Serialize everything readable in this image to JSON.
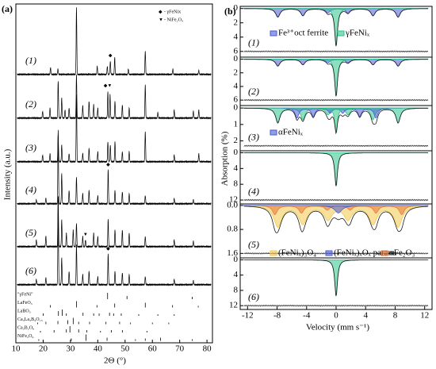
{
  "panel_a": {
    "label": "(a)",
    "x_label": "2Θ (°)",
    "y_label": "Intensity (a.u.)",
    "xlim": [
      10,
      82
    ],
    "xticks": [
      10,
      20,
      30,
      40,
      50,
      60,
      70,
      80
    ],
    "legend": [
      {
        "symbol": "◆",
        "text": "- γFeNix"
      },
      {
        "symbol": "▼",
        "text": "- NiFe₂O₄"
      }
    ],
    "patterns": [
      {
        "label": "(1)",
        "peaks": [
          [
            22.7,
            10
          ],
          [
            25.4,
            8
          ],
          [
            32.2,
            100
          ],
          [
            39.8,
            12
          ],
          [
            43.5,
            12
          ],
          [
            44.6,
            20
          ],
          [
            46.2,
            25
          ],
          [
            51.2,
            8
          ],
          [
            57.4,
            35
          ],
          [
            67.5,
            8
          ],
          [
            77,
            6
          ]
        ],
        "markers": [
          {
            "x": 44.6,
            "symbol": "◆"
          }
        ]
      },
      {
        "label": "(2)",
        "peaks": [
          [
            19.8,
            10
          ],
          [
            22.5,
            15
          ],
          [
            25.5,
            55
          ],
          [
            26.8,
            30
          ],
          [
            28,
            12
          ],
          [
            29.5,
            15
          ],
          [
            32.2,
            65
          ],
          [
            34.5,
            18
          ],
          [
            36.8,
            25
          ],
          [
            38.5,
            20
          ],
          [
            40,
            15
          ],
          [
            43.7,
            40
          ],
          [
            44.5,
            35
          ],
          [
            46.3,
            25
          ],
          [
            49,
            20
          ],
          [
            51.5,
            15
          ],
          [
            57.4,
            50
          ],
          [
            62,
            8
          ],
          [
            68,
            12
          ],
          [
            75,
            10
          ],
          [
            77,
            12
          ]
        ],
        "markers": [
          {
            "x": 43.7,
            "symbol": "◆▼"
          }
        ]
      },
      {
        "label": "(3)",
        "peaks": [
          [
            19.8,
            10
          ],
          [
            22.5,
            12
          ],
          [
            25.5,
            40
          ],
          [
            26.8,
            25
          ],
          [
            29.5,
            12
          ],
          [
            32.2,
            100
          ],
          [
            34.5,
            12
          ],
          [
            36.8,
            20
          ],
          [
            40,
            15
          ],
          [
            43.7,
            30
          ],
          [
            44.6,
            25
          ],
          [
            46.3,
            30
          ],
          [
            49,
            15
          ],
          [
            51.5,
            15
          ],
          [
            57.4,
            45
          ],
          [
            68,
            10
          ],
          [
            77,
            12
          ]
        ],
        "markers": []
      },
      {
        "label": "(4)",
        "peaks": [
          [
            17.5,
            6
          ],
          [
            21,
            8
          ],
          [
            25.5,
            110
          ],
          [
            26.8,
            45
          ],
          [
            29.5,
            20
          ],
          [
            32.2,
            40
          ],
          [
            34.5,
            15
          ],
          [
            36.8,
            20
          ],
          [
            40,
            12
          ],
          [
            43.8,
            50
          ],
          [
            46.3,
            20
          ],
          [
            49,
            18
          ],
          [
            51.5,
            15
          ],
          [
            57.4,
            12
          ],
          [
            68,
            8
          ],
          [
            75,
            6
          ]
        ],
        "markers": [
          {
            "x": 43.8,
            "symbol": "◆"
          }
        ]
      },
      {
        "label": "(5)",
        "peaks": [
          [
            17.5,
            10
          ],
          [
            21,
            15
          ],
          [
            25.5,
            75
          ],
          [
            26.8,
            40
          ],
          [
            28.5,
            20
          ],
          [
            31,
            25
          ],
          [
            32.2,
            35
          ],
          [
            34.5,
            15
          ],
          [
            35.5,
            10
          ],
          [
            38.5,
            20
          ],
          [
            40,
            15
          ],
          [
            43.8,
            40
          ],
          [
            46.3,
            25
          ],
          [
            49,
            25
          ],
          [
            51.5,
            20
          ],
          [
            57.4,
            15
          ],
          [
            68,
            10
          ],
          [
            75,
            8
          ]
        ],
        "markers": [
          {
            "x": 35.5,
            "symbol": "▼"
          }
        ]
      },
      {
        "label": "(6)",
        "peaks": [
          [
            17.5,
            8
          ],
          [
            21,
            10
          ],
          [
            25.5,
            115
          ],
          [
            26.8,
            40
          ],
          [
            29.5,
            20
          ],
          [
            32.2,
            60
          ],
          [
            34.5,
            15
          ],
          [
            36.8,
            20
          ],
          [
            40,
            12
          ],
          [
            43.8,
            45
          ],
          [
            46.3,
            20
          ],
          [
            49,
            18
          ],
          [
            51.5,
            15
          ],
          [
            57.4,
            12
          ],
          [
            68,
            8
          ],
          [
            75,
            6
          ]
        ],
        "markers": [
          {
            "x": 43.8,
            "symbol": "◆"
          }
        ]
      }
    ],
    "references": [
      {
        "name": "\"γFeNi\"",
        "lines": [
          [
            43.6,
            8
          ],
          [
            50.7,
            4
          ],
          [
            74.6,
            3
          ]
        ]
      },
      {
        "name": "LaFeO₃",
        "lines": [
          [
            22.6,
            3
          ],
          [
            32.2,
            8
          ],
          [
            39.7,
            3
          ],
          [
            46.2,
            5
          ],
          [
            57.4,
            6
          ],
          [
            67.4,
            3
          ],
          [
            76.8,
            2
          ]
        ]
      },
      {
        "name": "LaBO₃",
        "lines": [
          [
            20,
            3
          ],
          [
            25.6,
            6
          ],
          [
            27,
            8
          ],
          [
            28.5,
            3
          ],
          [
            34.6,
            4
          ],
          [
            38.5,
            3
          ],
          [
            40.5,
            3
          ],
          [
            44.3,
            4
          ],
          [
            45.8,
            3
          ],
          [
            48.6,
            3
          ],
          [
            55,
            2
          ],
          [
            62,
            2
          ],
          [
            68,
            2
          ]
        ]
      },
      {
        "name": "Ca₃La₃B₄O₁₅",
        "lines": [
          [
            18,
            2
          ],
          [
            21,
            3
          ],
          [
            25.4,
            4
          ],
          [
            29,
            5
          ],
          [
            31,
            8
          ],
          [
            33,
            3
          ],
          [
            37,
            3
          ],
          [
            43,
            3
          ],
          [
            48,
            3
          ],
          [
            52,
            2
          ],
          [
            60,
            2
          ],
          [
            66,
            2
          ]
        ]
      },
      {
        "name": "Ca₃B₂O₆",
        "lines": [
          [
            19,
            2
          ],
          [
            24,
            3
          ],
          [
            28.5,
            4
          ],
          [
            29.8,
            8
          ],
          [
            33,
            4
          ],
          [
            36,
            3
          ],
          [
            41,
            2
          ],
          [
            45,
            3
          ],
          [
            49,
            3
          ],
          [
            58,
            2
          ]
        ]
      },
      {
        "name": "NiFe₂O₄",
        "lines": [
          [
            18.4,
            2
          ],
          [
            30.3,
            3
          ],
          [
            35.7,
            8
          ],
          [
            43.4,
            4
          ],
          [
            53.8,
            2
          ],
          [
            57.4,
            3
          ],
          [
            63,
            4
          ],
          [
            74.6,
            2
          ]
        ]
      }
    ]
  },
  "panel_b": {
    "label": "(b)",
    "x_label": "Velocity (mm s⁻¹)",
    "y_label": "Absorption (%)",
    "xlim": [
      -13,
      13
    ],
    "xticks": [
      -12,
      -8,
      -4,
      0,
      4,
      8,
      12
    ],
    "spectra": [
      {
        "label": "(1)",
        "ylim": [
          -0.3,
          6.8
        ],
        "yticks": [
          0,
          2,
          4,
          6
        ],
        "residual": 6,
        "legend": [
          {
            "text": "Fe³⁺oct ferrite",
            "color": "#4a5bd6"
          },
          {
            "text": "γFeNiₓ",
            "color": "#2ec48a"
          }
        ],
        "components": [
          {
            "color": "#4a5bd6",
            "lines": [
              -7.9,
              -4.5,
              -1.1,
              1.6,
              5,
              8.4
            ],
            "depths": [
              1.2,
              1.0,
              0.6,
              0.6,
              1.0,
              1.2
            ],
            "width": 0.7
          },
          {
            "color": "#2ec48a",
            "lines": [
              0
            ],
            "depths": [
              5.2
            ],
            "width": 0.45
          }
        ]
      },
      {
        "label": "(2)",
        "ylim": [
          -0.3,
          6.8
        ],
        "yticks": [
          0,
          2,
          4,
          6
        ],
        "residual": 6,
        "legend": [],
        "components": [
          {
            "color": "#4a5bd6",
            "lines": [
              -7.9,
              -4.5,
              -1.1,
              1.6,
              5,
              8.4
            ],
            "depths": [
              1.0,
              0.8,
              0.5,
              0.5,
              0.8,
              1.0
            ],
            "width": 0.7
          },
          {
            "color": "#2ec48a",
            "lines": [
              0
            ],
            "depths": [
              5.4
            ],
            "width": 0.45
          }
        ]
      },
      {
        "label": "(3)",
        "ylim": [
          -0.15,
          2.6
        ],
        "yticks": [
          0,
          1,
          2
        ],
        "residual": 2.3,
        "legend": [
          {
            "text": "αFeNiₓ",
            "color": "#4a5bd6"
          }
        ],
        "components": [
          {
            "color": "#2ec48a",
            "lines": [
              -7.9,
              -4.5,
              -1.1,
              1.6,
              5,
              8.4
            ],
            "depths": [
              0.9,
              0.7,
              0.4,
              0.4,
              0.7,
              0.9
            ],
            "width": 0.7
          },
          {
            "color": "#4a5bd6",
            "lines": [
              -5.3,
              -3.1,
              -0.8,
              0.9,
              3.2,
              5.4
            ],
            "depths": [
              0.6,
              0.5,
              0.3,
              0.3,
              0.5,
              0.6
            ],
            "width": 0.6
          },
          {
            "color": "#2ec48a",
            "lines": [
              0
            ],
            "depths": [
              1.4
            ],
            "width": 0.45
          }
        ]
      },
      {
        "label": "(4)",
        "ylim": [
          -0.5,
          13
        ],
        "yticks": [
          0,
          4,
          8,
          12
        ],
        "residual": 12,
        "legend": [],
        "components": [
          {
            "color": "#2ec48a",
            "lines": [
              0
            ],
            "depths": [
              8.5
            ],
            "width": 0.45
          }
        ]
      },
      {
        "label": "(5)",
        "ylim": [
          -0.05,
          1.75
        ],
        "yticks": [
          {
            "value": 0,
            "label": "0.0"
          },
          {
            "value": 0.8,
            "label": "0.8"
          },
          {
            "value": 1.6,
            "label": "1.6"
          }
        ],
        "residual": 1.6,
        "legend": [
          {
            "text": "(FeNiₓ)₃O₄",
            "color": "#f2c94c"
          },
          {
            "text": "(FeNiₓ)ₓOₓ param.",
            "color": "#4a5bd6"
          },
          {
            "text": "αFe₂O₃",
            "color": "#e8793a"
          }
        ],
        "components": [
          {
            "color": "#f2c94c",
            "lines": [
              -7.9,
              -4.5,
              -1.1,
              1.6,
              5,
              8.4
            ],
            "depths": [
              0.7,
              0.6,
              0.45,
              0.45,
              0.6,
              0.7
            ],
            "width": 1.3
          },
          {
            "color": "#e8793a",
            "lines": [
              -8.3,
              -4.7,
              -1.2,
              1.9,
              5.4,
              8.9
            ],
            "depths": [
              0.3,
              0.25,
              0.15,
              0.15,
              0.25,
              0.3
            ],
            "width": 0.8
          },
          {
            "color": "#4a5bd6",
            "lines": [
              0.3
            ],
            "depths": [
              0.25
            ],
            "width": 1.2
          }
        ]
      },
      {
        "label": "(6)",
        "ylim": [
          -0.5,
          13
        ],
        "yticks": [
          0,
          4,
          8,
          12
        ],
        "residual": 12,
        "legend": [],
        "components": [
          {
            "color": "#2ec48a",
            "lines": [
              0
            ],
            "depths": [
              9.5
            ],
            "width": 0.45
          }
        ]
      }
    ]
  }
}
